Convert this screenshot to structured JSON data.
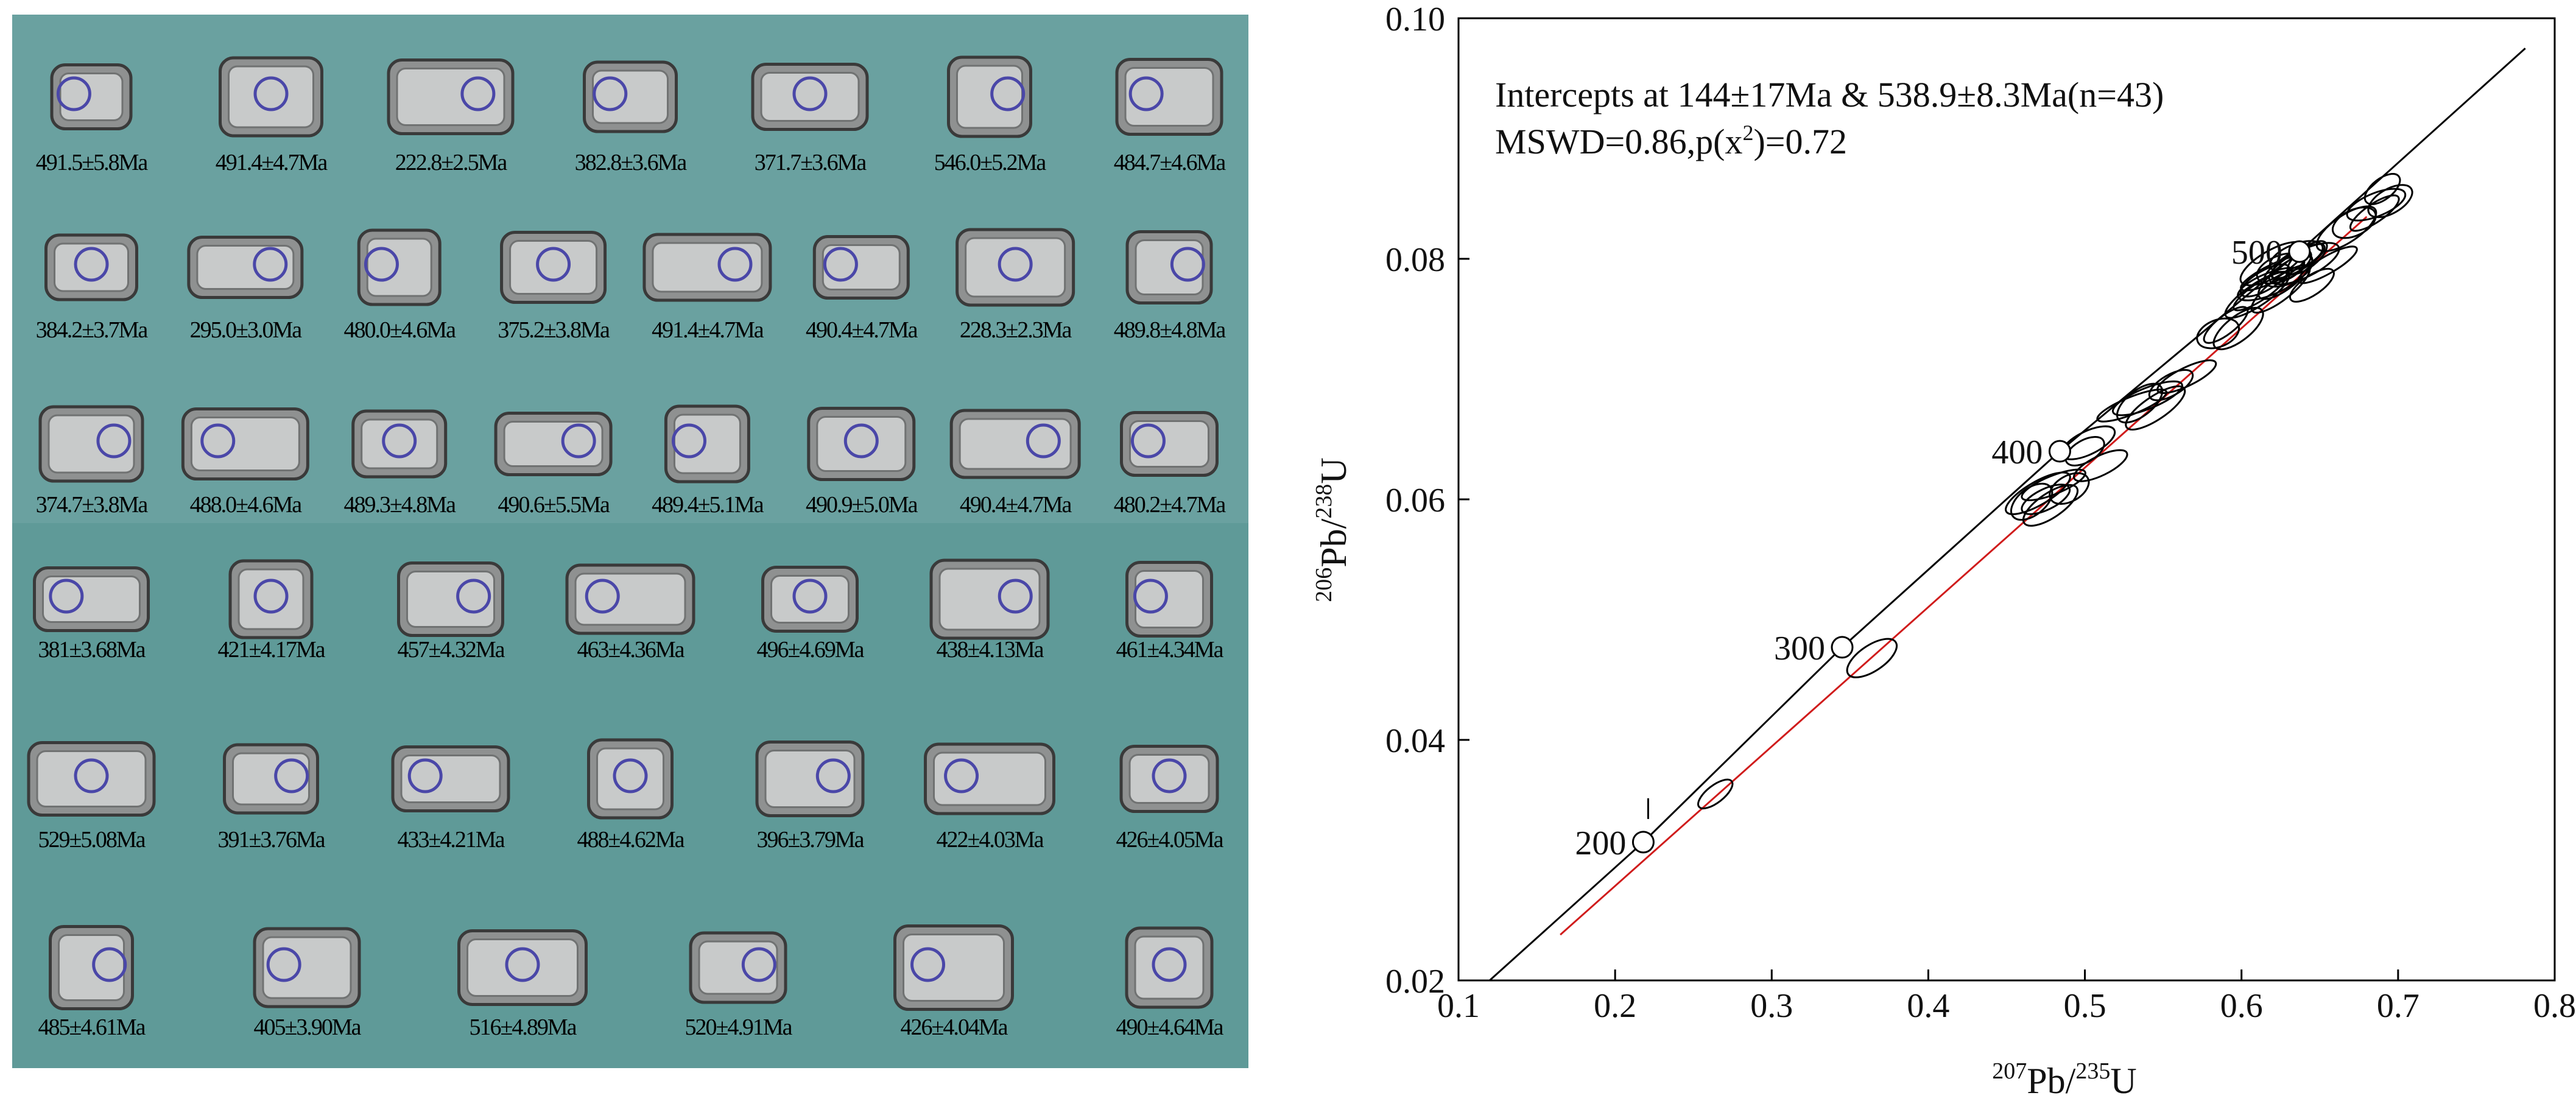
{
  "colors": {
    "mosaic_background": "#6aa1a0",
    "mosaic_background_lower": "#5f9a98",
    "spot_circle": "#4a47a8",
    "concordia": "#000000",
    "discordia": "#d01c1c"
  },
  "zircons": {
    "rows": [
      [
        "491.5±5.8Ma",
        "491.4±4.7Ma",
        "222.8±2.5Ma",
        "382.8±3.6Ma",
        "371.7±3.6Ma",
        "546.0±5.2Ma",
        "484.7±4.6Ma"
      ],
      [
        "384.2±3.7Ma",
        "295.0±3.0Ma",
        "480.0±4.6Ma",
        "375.2±3.8Ma",
        "491.4±4.7Ma",
        "490.4±4.7Ma",
        "228.3±2.3Ma",
        "489.8±4.8Ma"
      ],
      [
        "374.7±3.8Ma",
        "488.0±4.6Ma",
        "489.3±4.8Ma",
        "490.6±5.5Ma",
        "489.4±5.1Ma",
        "490.9±5.0Ma",
        "490.4±4.7Ma",
        "480.2±4.7Ma"
      ],
      [
        "381±3.68Ma",
        "421±4.17Ma",
        "457±4.32Ma",
        "463±4.36Ma",
        "496±4.69Ma",
        "438±4.13Ma",
        "461±4.34Ma"
      ],
      [
        "529±5.08Ma",
        "391±3.76Ma",
        "433±4.21Ma",
        "488±4.62Ma",
        "396±3.79Ma",
        "422±4.03Ma",
        "426±4.05Ma"
      ],
      [
        "485±4.61Ma",
        "405±3.90Ma",
        "516±4.89Ma",
        "520±4.91Ma",
        "426±4.04Ma",
        "490±4.64Ma"
      ]
    ]
  },
  "chart_data": {
    "type": "scatter",
    "title": "",
    "annotation": {
      "line1": "Intercepts at 144±17Ma & 538.9±8.3Ma(n=43)",
      "line2_prefix": "MSWD=0.86,p(x",
      "line2_sup": "2",
      "line2_suffix": ")=0.72"
    },
    "xlabel": {
      "sup": "207",
      "base": "Pb/",
      "sup2": "235",
      "base2": "U"
    },
    "ylabel": {
      "sup": "206",
      "base": "Pb/",
      "sup2": "238",
      "base2": "U"
    },
    "xlim": [
      0.1,
      0.8
    ],
    "ylim": [
      0.02,
      0.1
    ],
    "x_ticks": [
      "0.1",
      "0.2",
      "0.3",
      "0.4",
      "0.5",
      "0.6",
      "0.7",
      "0.8"
    ],
    "y_ticks": [
      "0.02",
      "0.04",
      "0.06",
      "0.08",
      "0.10"
    ],
    "concordia_age_marks": [
      {
        "label": "200",
        "x": 0.218,
        "y": 0.0315
      },
      {
        "label": "300",
        "x": 0.345,
        "y": 0.0477
      },
      {
        "label": "400",
        "x": 0.484,
        "y": 0.064
      },
      {
        "label": "500",
        "x": 0.637,
        "y": 0.0806
      }
    ],
    "discordia": {
      "from": [
        0.165,
        0.0238
      ],
      "to": [
        0.68,
        0.0835
      ]
    },
    "ellipses": [
      [
        0.264,
        0.0355
      ],
      [
        0.364,
        0.0468
      ],
      [
        0.47,
        0.0605
      ],
      [
        0.475,
        0.06
      ],
      [
        0.48,
        0.0612
      ],
      [
        0.466,
        0.0598
      ],
      [
        0.478,
        0.0595
      ],
      [
        0.5,
        0.064
      ],
      [
        0.51,
        0.0628
      ],
      [
        0.53,
        0.0678
      ],
      [
        0.535,
        0.068
      ],
      [
        0.545,
        0.0676
      ],
      [
        0.555,
        0.0695
      ],
      [
        0.565,
        0.0702
      ],
      [
        0.585,
        0.0738
      ],
      [
        0.598,
        0.0742
      ],
      [
        0.61,
        0.077
      ],
      [
        0.615,
        0.0782
      ],
      [
        0.62,
        0.0788
      ],
      [
        0.625,
        0.0792
      ],
      [
        0.628,
        0.0785
      ],
      [
        0.632,
        0.0795
      ],
      [
        0.636,
        0.0798
      ],
      [
        0.64,
        0.0796
      ],
      [
        0.635,
        0.0802
      ],
      [
        0.625,
        0.0775
      ],
      [
        0.645,
        0.0778
      ],
      [
        0.655,
        0.0795
      ],
      [
        0.672,
        0.083
      ],
      [
        0.686,
        0.0845
      ],
      [
        0.69,
        0.0858
      ],
      [
        0.685,
        0.0838
      ],
      [
        0.62,
        0.0796
      ],
      [
        0.63,
        0.079
      ],
      [
        0.618,
        0.0779
      ],
      [
        0.642,
        0.0801
      ],
      [
        0.612,
        0.0773
      ],
      [
        0.49,
        0.0609
      ],
      [
        0.502,
        0.0647
      ],
      [
        0.54,
        0.0684
      ],
      [
        0.59,
        0.0745
      ],
      [
        0.667,
        0.0825
      ],
      [
        0.695,
        0.0848
      ]
    ]
  }
}
